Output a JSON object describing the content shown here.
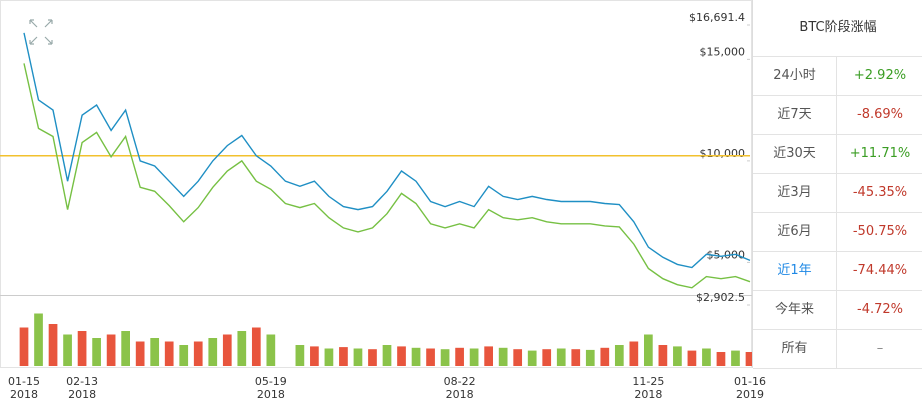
{
  "chart_data": [
    {
      "type": "line",
      "categories": [
        "01-15\n2018",
        null,
        null,
        null,
        "02-13\n2018",
        null,
        null,
        null,
        null,
        null,
        null,
        null,
        null,
        null,
        null,
        null,
        null,
        "05-19\n2018",
        null,
        null,
        null,
        null,
        null,
        null,
        null,
        null,
        null,
        null,
        null,
        null,
        "08-22\n2018",
        null,
        null,
        null,
        null,
        null,
        null,
        null,
        null,
        null,
        null,
        null,
        null,
        "11-25\n2018",
        null,
        null,
        null,
        null,
        null,
        null,
        "01-16\n2019"
      ],
      "series": [
        {
          "color": "#1f8fc4",
          "values": [
            16300,
            13000,
            12500,
            9000,
            12250,
            12750,
            11500,
            12500,
            10000,
            9750,
            9000,
            8250,
            9000,
            10000,
            10750,
            11250,
            10250,
            9750,
            9000,
            8750,
            9000,
            8250,
            7750,
            7600,
            7750,
            8500,
            9500,
            9000,
            8000,
            7750,
            8000,
            7750,
            8750,
            8250,
            8100,
            8250,
            8100,
            8000,
            8000,
            8000,
            7900,
            7850,
            7000,
            5750,
            5250,
            4900,
            4750,
            5400,
            5300,
            5400,
            5100
          ]
        },
        {
          "color": "#76c043",
          "values": [
            14800,
            11600,
            11200,
            7600,
            10900,
            11400,
            10200,
            11200,
            8700,
            8500,
            7800,
            7000,
            7700,
            8700,
            9500,
            10000,
            9000,
            8600,
            7900,
            7700,
            7900,
            7200,
            6700,
            6500,
            6700,
            7400,
            8400,
            7900,
            6900,
            6700,
            6900,
            6700,
            7600,
            7200,
            7100,
            7200,
            7000,
            6900,
            6900,
            6900,
            6800,
            6750,
            5900,
            4700,
            4200,
            3900,
            3750,
            4300,
            4200,
            4300,
            4050
          ]
        }
      ],
      "ylim": [
        2902.5,
        16691.4
      ],
      "yticks": [
        {
          "value": 16691.4,
          "label": "$16,691.4"
        },
        {
          "value": 15000,
          "label": "$15,000"
        },
        {
          "value": 10000,
          "label": "$10,000"
        },
        {
          "value": 5000,
          "label": "$5,000"
        },
        {
          "value": 2902.5,
          "label": "$2,902.5"
        }
      ],
      "reference_line": {
        "value": 10250,
        "color": "#f2c12e"
      }
    },
    {
      "type": "bar",
      "values": [
        55,
        75,
        60,
        45,
        50,
        40,
        45,
        50,
        35,
        40,
        35,
        30,
        35,
        40,
        45,
        50,
        55,
        45,
        null,
        30,
        28,
        25,
        27,
        25,
        24,
        30,
        28,
        26,
        25,
        24,
        26,
        25,
        28,
        26,
        24,
        22,
        24,
        25,
        24,
        23,
        26,
        30,
        35,
        45,
        30,
        28,
        22,
        25,
        20,
        22,
        20
      ],
      "ylim": [
        0,
        100
      ],
      "colors": [
        "#e8553d",
        "#8bc34a"
      ]
    }
  ],
  "table": {
    "title": "BTC阶段涨幅",
    "rows": [
      [
        "24小时",
        "+2.92%"
      ],
      [
        "近7天",
        "-8.69%"
      ],
      [
        "近30天",
        "+11.71%"
      ],
      [
        "近3月",
        "-45.35%"
      ],
      [
        "近6月",
        "-50.75%"
      ],
      [
        "近1年",
        "-74.44%"
      ],
      [
        "今年来",
        "-4.72%"
      ],
      [
        "所有",
        "–"
      ]
    ],
    "active_row": 5
  }
}
